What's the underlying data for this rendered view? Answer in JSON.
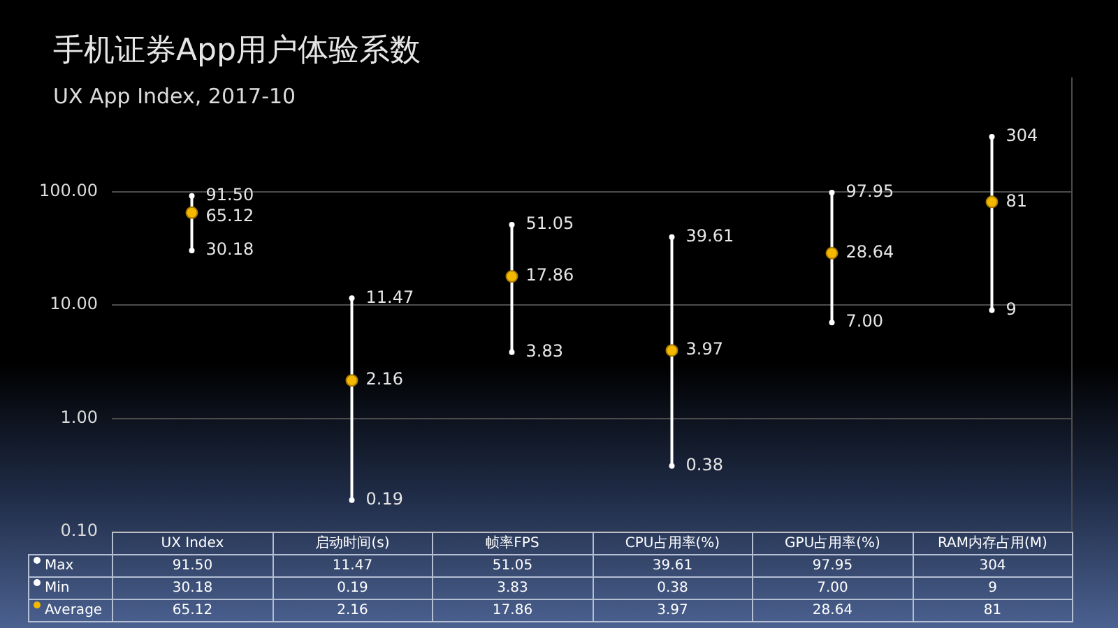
{
  "chart_data": {
    "type": "scatter",
    "title": "手机证券App用户体验系数",
    "subtitle": "UX App Index, 2017-10",
    "categories": [
      "UX Index",
      "启动时间(s)",
      "帧率FPS",
      "CPU占用率(%)",
      "GPU占用率(%)",
      "RAM内存占用(M)"
    ],
    "series": [
      {
        "name": "Max",
        "color": "#ffffff",
        "values": [
          91.5,
          11.47,
          51.05,
          39.61,
          97.95,
          304
        ],
        "value_labels": [
          "91.50",
          "11.47",
          "51.05",
          "39.61",
          "97.95",
          "304"
        ]
      },
      {
        "name": "Min",
        "color": "#ffffff",
        "values": [
          30.18,
          0.19,
          3.83,
          0.38,
          7,
          9
        ],
        "value_labels": [
          "30.18",
          "0.19",
          "3.83",
          "0.38",
          "7.00",
          "9"
        ]
      },
      {
        "name": "Average",
        "color": "#f5b800",
        "values": [
          65.12,
          2.16,
          17.86,
          3.97,
          28.64,
          81
        ],
        "value_labels": [
          "65.12",
          "2.16",
          "17.86",
          "3.97",
          "28.64",
          "81"
        ]
      }
    ],
    "marker": "circle",
    "log": "y",
    "ylim": [
      0.1,
      1000
    ],
    "yticks": [
      {
        "value": 0.1,
        "label": "0.10"
      },
      {
        "value": 1,
        "label": "1.00"
      },
      {
        "value": 10,
        "label": "10.00"
      },
      {
        "value": 100,
        "label": "100.00"
      }
    ],
    "grid": "y",
    "legend": "bottom"
  }
}
